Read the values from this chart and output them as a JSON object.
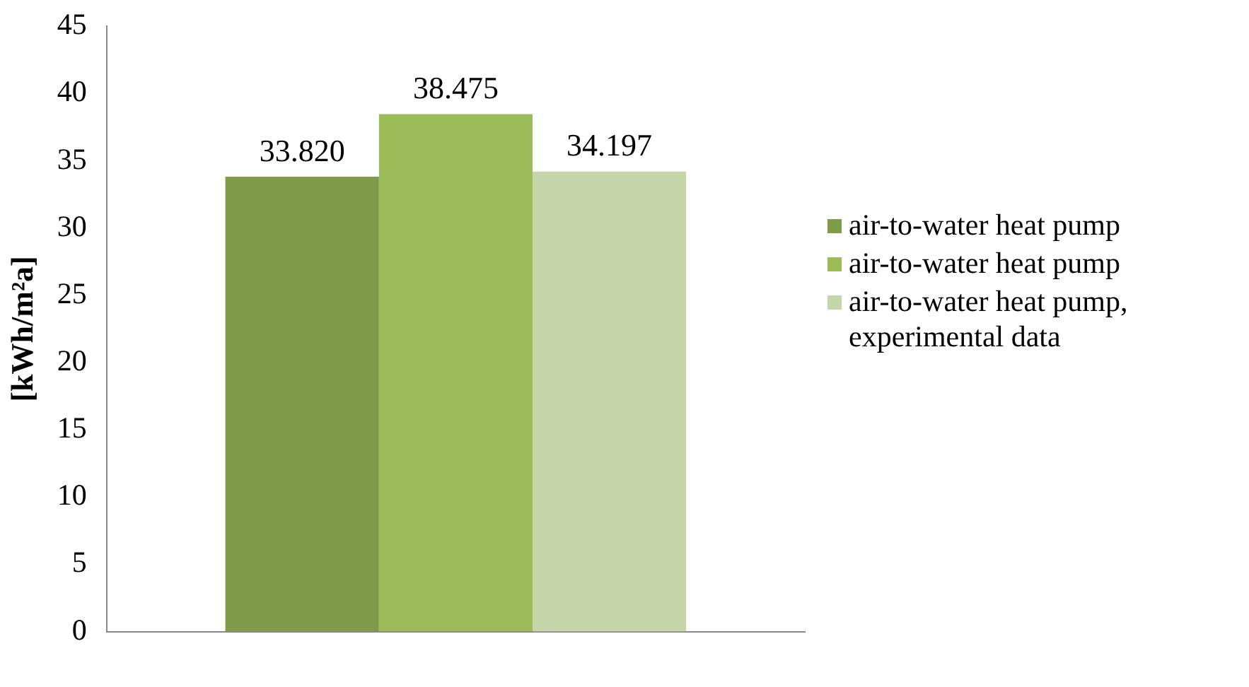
{
  "chart_data": {
    "type": "bar",
    "ylabel": "[kWh/m²a]",
    "categories": [
      null
    ],
    "series": [
      {
        "name": "air-to-water heat pump",
        "color": "#7f9a48",
        "values": [
          33.82
        ]
      },
      {
        "name": "air-to-water heat pump",
        "color": "#9bbb59",
        "values": [
          38.475
        ]
      },
      {
        "name": "air-to-water heat pump, experimental data",
        "color": "#c6d5a9",
        "values": [
          34.197
        ]
      }
    ],
    "value_labels": [
      "33.820",
      "38.475",
      "34.197"
    ],
    "ylim": [
      0,
      45
    ],
    "yticks": [
      0,
      5,
      10,
      15,
      20,
      25,
      30,
      35,
      40,
      45
    ],
    "grid": false,
    "legend": "right"
  }
}
